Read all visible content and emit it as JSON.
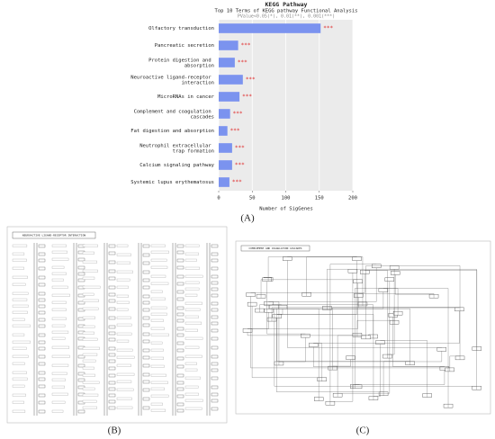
{
  "chart_data": {
    "type": "bar",
    "orientation": "horizontal",
    "title": "KEGG Pathway",
    "subtitle": "Top 10 Terms of KEGG pathway Functional Analysis",
    "note": "PValue<0.05(*), 0.01(**), 0.001(***)",
    "categories": [
      "Olfactory transduction",
      "Pancreatic secretion",
      "Protein digestion and absorption",
      "Neuroactive ligand-receptor interaction",
      "MicroRNAs in cancer",
      "Complement and coagulation cascades",
      "Fat digestion and absorption",
      "Neutrophil extracellular trap formation",
      "Calcium signaling pathway",
      "Systemic lupus erythematosus"
    ],
    "values": [
      152,
      29,
      24,
      36,
      31,
      17,
      13,
      20,
      20,
      16
    ],
    "significance": [
      "***",
      "***",
      "***",
      "***",
      "***",
      "***",
      "***",
      "***",
      "***",
      "***"
    ],
    "color": "#7b93ef",
    "xlabel": "Number of SigGenes",
    "xlim": [
      0,
      200
    ],
    "xticks": [
      0,
      50,
      100,
      150,
      200
    ],
    "grid": true
  },
  "panels": [
    "(A)",
    "(B)",
    "(C)"
  ],
  "diagrams": [
    {
      "title": "NEUROACTIVE LIGAND-RECEPTOR INTERACTION"
    },
    {
      "title": "COMPLEMENT AND COAGULATION CASCADES"
    }
  ]
}
